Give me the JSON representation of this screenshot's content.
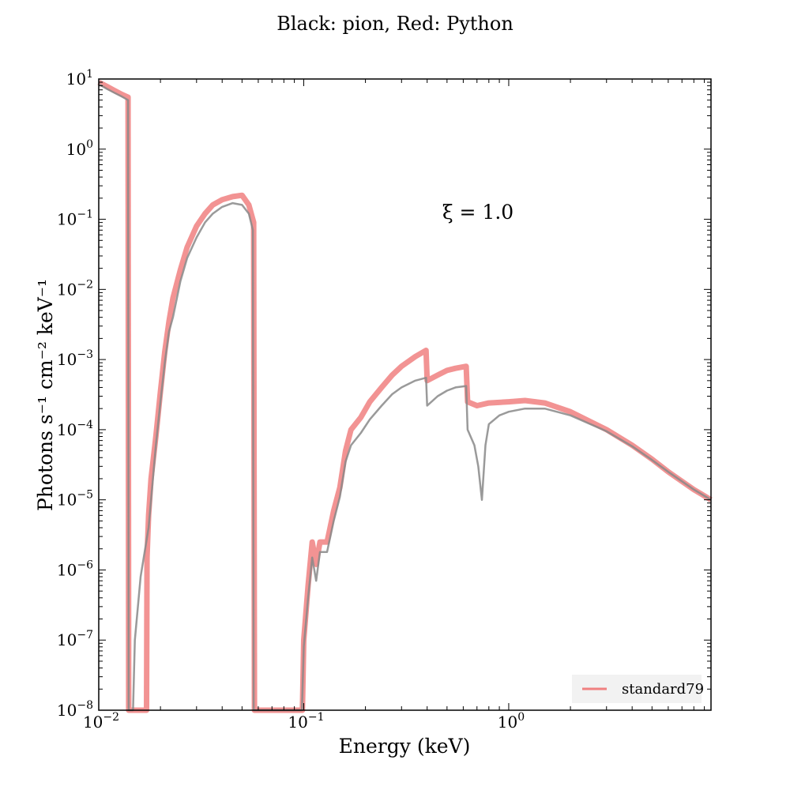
{
  "chart_data": {
    "type": "line",
    "title": "Black: pion, Red: Python",
    "xlabel": "Energy (keV)",
    "ylabel": "Photons s⁻¹ cm⁻² keV⁻¹",
    "x_scale": "log",
    "y_scale": "log",
    "xlim": [
      0.01,
      9.7
    ],
    "ylim": [
      1e-08,
      10
    ],
    "grid": false,
    "legend_position": "lower-right",
    "annotation": "ξ = 1.0",
    "x_ticks": [
      {
        "value": 0.01,
        "base": "10",
        "exp": "−2"
      },
      {
        "value": 0.1,
        "base": "10",
        "exp": "−1"
      },
      {
        "value": 1,
        "base": "10",
        "exp": "0"
      }
    ],
    "y_ticks": [
      {
        "value": 10,
        "base": "10",
        "exp": "1"
      },
      {
        "value": 1,
        "base": "10",
        "exp": "0"
      },
      {
        "value": 0.1,
        "base": "10",
        "exp": "−1"
      },
      {
        "value": 0.01,
        "base": "10",
        "exp": "−2"
      },
      {
        "value": 0.001,
        "base": "10",
        "exp": "−3"
      },
      {
        "value": 0.0001,
        "base": "10",
        "exp": "−4"
      },
      {
        "value": 1e-05,
        "base": "10",
        "exp": "−5"
      },
      {
        "value": 1e-06,
        "base": "10",
        "exp": "−6"
      },
      {
        "value": 1e-07,
        "base": "10",
        "exp": "−7"
      },
      {
        "value": 1e-08,
        "base": "10",
        "exp": "−8"
      }
    ],
    "series": [
      {
        "name": "standard79",
        "color": "#f08080",
        "points": [
          [
            0.01,
            9.0
          ],
          [
            0.011,
            7.8
          ],
          [
            0.012,
            6.8
          ],
          [
            0.013,
            6.0
          ],
          [
            0.0139,
            5.5
          ],
          [
            0.014,
            1e-08
          ],
          [
            0.0171,
            1e-08
          ],
          [
            0.0172,
            1.5e-06
          ],
          [
            0.0175,
            6e-06
          ],
          [
            0.018,
            2e-05
          ],
          [
            0.019,
            8e-05
          ],
          [
            0.02,
            0.00035
          ],
          [
            0.021,
            0.0013
          ],
          [
            0.022,
            0.0035
          ],
          [
            0.023,
            0.0075
          ],
          [
            0.025,
            0.019
          ],
          [
            0.027,
            0.04
          ],
          [
            0.03,
            0.08
          ],
          [
            0.033,
            0.12
          ],
          [
            0.036,
            0.16
          ],
          [
            0.04,
            0.19
          ],
          [
            0.045,
            0.21
          ],
          [
            0.05,
            0.22
          ],
          [
            0.054,
            0.16
          ],
          [
            0.057,
            0.09
          ],
          [
            0.0575,
            1e-08
          ],
          [
            0.0985,
            1e-08
          ],
          [
            0.1,
            1e-07
          ],
          [
            0.105,
            6e-07
          ],
          [
            0.11,
            2.5e-06
          ],
          [
            0.115,
            1.2e-06
          ],
          [
            0.12,
            2.5e-06
          ],
          [
            0.13,
            2.5e-06
          ],
          [
            0.14,
            7e-06
          ],
          [
            0.15,
            1.5e-05
          ],
          [
            0.16,
            5e-05
          ],
          [
            0.17,
            0.0001
          ],
          [
            0.19,
            0.00015
          ],
          [
            0.21,
            0.00025
          ],
          [
            0.24,
            0.0004
          ],
          [
            0.27,
            0.0006
          ],
          [
            0.3,
            0.0008
          ],
          [
            0.35,
            0.0011
          ],
          [
            0.395,
            0.00135
          ],
          [
            0.4,
            0.0005
          ],
          [
            0.45,
            0.0006
          ],
          [
            0.5,
            0.0007
          ],
          [
            0.55,
            0.00075
          ],
          [
            0.62,
            0.0008
          ],
          [
            0.63,
            0.00025
          ],
          [
            0.7,
            0.00022
          ],
          [
            0.8,
            0.00024
          ],
          [
            1.0,
            0.00025
          ],
          [
            1.2,
            0.00026
          ],
          [
            1.5,
            0.00024
          ],
          [
            2.0,
            0.00018
          ],
          [
            3.0,
            0.0001
          ],
          [
            4.0,
            6e-05
          ],
          [
            5.0,
            3.8e-05
          ],
          [
            6.0,
            2.5e-05
          ],
          [
            8.0,
            1.4e-05
          ],
          [
            9.7,
            1e-05
          ]
        ]
      },
      {
        "name": "pion",
        "color": "#888888",
        "points": [
          [
            0.01,
            8.5
          ],
          [
            0.011,
            7.2
          ],
          [
            0.012,
            6.3
          ],
          [
            0.013,
            5.6
          ],
          [
            0.0139,
            5.0
          ],
          [
            0.014,
            1e-08
          ],
          [
            0.0147,
            1e-08
          ],
          [
            0.015,
            1e-07
          ],
          [
            0.016,
            8e-07
          ],
          [
            0.0175,
            4e-06
          ],
          [
            0.019,
            6e-05
          ],
          [
            0.02,
            0.00025
          ],
          [
            0.021,
            0.0009
          ],
          [
            0.022,
            0.0025
          ],
          [
            0.023,
            0.004
          ],
          [
            0.025,
            0.013
          ],
          [
            0.027,
            0.028
          ],
          [
            0.03,
            0.055
          ],
          [
            0.033,
            0.09
          ],
          [
            0.036,
            0.12
          ],
          [
            0.04,
            0.15
          ],
          [
            0.045,
            0.17
          ],
          [
            0.05,
            0.16
          ],
          [
            0.054,
            0.12
          ],
          [
            0.0565,
            0.07
          ],
          [
            0.057,
            1e-08
          ],
          [
            0.098,
            1e-08
          ],
          [
            0.1,
            8e-08
          ],
          [
            0.105,
            4e-07
          ],
          [
            0.11,
            1.5e-06
          ],
          [
            0.115,
            7e-07
          ],
          [
            0.12,
            1.8e-06
          ],
          [
            0.13,
            1.8e-06
          ],
          [
            0.14,
            5e-06
          ],
          [
            0.15,
            1.1e-05
          ],
          [
            0.16,
            3.5e-05
          ],
          [
            0.17,
            6e-05
          ],
          [
            0.19,
            9e-05
          ],
          [
            0.21,
            0.00014
          ],
          [
            0.24,
            0.00022
          ],
          [
            0.27,
            0.00032
          ],
          [
            0.3,
            0.0004
          ],
          [
            0.35,
            0.0005
          ],
          [
            0.395,
            0.00055
          ],
          [
            0.4,
            0.00022
          ],
          [
            0.45,
            0.0003
          ],
          [
            0.5,
            0.00036
          ],
          [
            0.55,
            0.0004
          ],
          [
            0.62,
            0.00042
          ],
          [
            0.63,
            0.0001
          ],
          [
            0.68,
            6e-05
          ],
          [
            0.71,
            3e-05
          ],
          [
            0.74,
            1e-05
          ],
          [
            0.77,
            6e-05
          ],
          [
            0.8,
            0.00012
          ],
          [
            0.9,
            0.00016
          ],
          [
            1.0,
            0.00018
          ],
          [
            1.2,
            0.0002
          ],
          [
            1.5,
            0.0002
          ],
          [
            2.0,
            0.00016
          ],
          [
            3.0,
            9.5e-05
          ],
          [
            4.0,
            5.8e-05
          ],
          [
            5.0,
            3.7e-05
          ],
          [
            6.0,
            2.5e-05
          ],
          [
            8.0,
            1.4e-05
          ],
          [
            9.7,
            1e-05
          ]
        ]
      }
    ]
  }
}
